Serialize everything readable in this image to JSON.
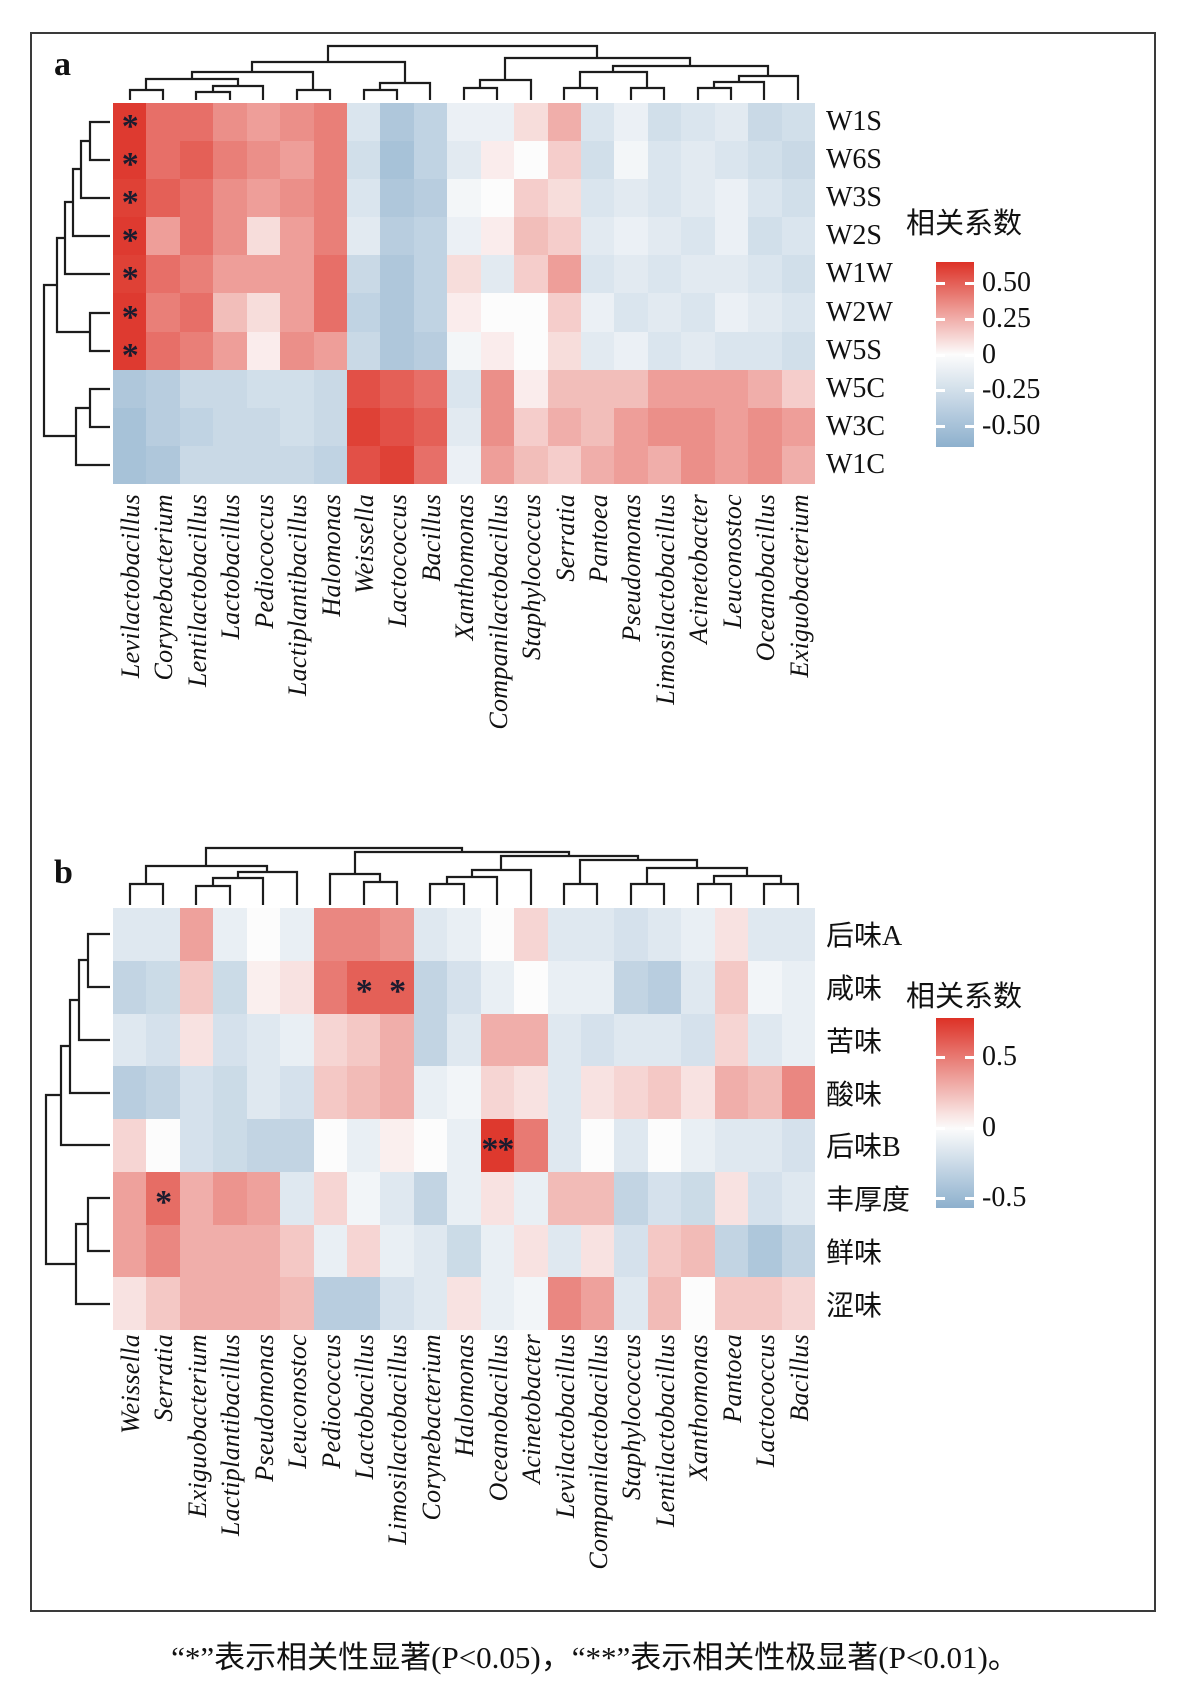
{
  "caption": "“*”表示相关性显著(P<0.05)，“**”表示相关性极显著(P<0.01)。",
  "chart_data": [
    {
      "type": "heatmap",
      "panel_label": "a",
      "legend": {
        "title": "相关系数",
        "ticks": [
          {
            "label": "0.50",
            "value": 0.5
          },
          {
            "label": "0.25",
            "value": 0.25
          },
          {
            "label": "0",
            "value": 0
          },
          {
            "label": "-0.25",
            "value": -0.25
          },
          {
            "label": "-0.50",
            "value": -0.5
          }
        ],
        "scale_max": 0.65,
        "scale_min": -0.65
      },
      "rows": [
        "W1S",
        "W6S",
        "W3S",
        "W2S",
        "W1W",
        "W2W",
        "W5S",
        "W5C",
        "W3C",
        "W1C"
      ],
      "columns": [
        "Levilactobacillus",
        "Corynebacterium",
        "Lentilactobacillus",
        "Lactobacillus",
        "Pediococcus",
        "Lactiplantibacillus",
        "Halomonas",
        "Weissella",
        "Lactococcus",
        "Bacillus",
        "Xanthomonas",
        "Companilactobacillus",
        "Staphylococcus",
        "Serratia",
        "Pantoea",
        "Pseudomonas",
        "Limosilactobacillus",
        "Acinetobacter",
        "Leuconostoc",
        "Oceanobacillus",
        "Exiguobacterium"
      ],
      "values": [
        [
          0.62,
          0.45,
          0.45,
          0.35,
          0.3,
          0.35,
          0.4,
          -0.2,
          -0.45,
          -0.35,
          -0.1,
          -0.1,
          0.1,
          0.25,
          -0.2,
          -0.1,
          -0.25,
          -0.2,
          -0.15,
          -0.3,
          -0.25
        ],
        [
          0.62,
          0.45,
          0.5,
          0.4,
          0.35,
          0.3,
          0.4,
          -0.25,
          -0.5,
          -0.35,
          -0.15,
          0.05,
          0.0,
          0.15,
          -0.25,
          -0.05,
          -0.2,
          -0.15,
          -0.2,
          -0.25,
          -0.3
        ],
        [
          0.6,
          0.5,
          0.45,
          0.35,
          0.3,
          0.35,
          0.4,
          -0.2,
          -0.45,
          -0.4,
          -0.05,
          0.0,
          0.15,
          0.1,
          -0.2,
          -0.15,
          -0.2,
          -0.15,
          -0.1,
          -0.2,
          -0.25
        ],
        [
          0.62,
          0.3,
          0.45,
          0.35,
          0.1,
          0.3,
          0.4,
          -0.15,
          -0.4,
          -0.35,
          -0.1,
          0.05,
          0.2,
          0.15,
          -0.15,
          -0.1,
          -0.15,
          -0.2,
          -0.1,
          -0.25,
          -0.2
        ],
        [
          0.6,
          0.45,
          0.4,
          0.3,
          0.3,
          0.3,
          0.45,
          -0.3,
          -0.45,
          -0.35,
          0.1,
          -0.15,
          0.15,
          0.3,
          -0.2,
          -0.15,
          -0.2,
          -0.15,
          -0.15,
          -0.2,
          -0.25
        ],
        [
          0.62,
          0.4,
          0.45,
          0.2,
          0.1,
          0.3,
          0.45,
          -0.35,
          -0.45,
          -0.35,
          0.05,
          0.0,
          0.0,
          0.15,
          -0.1,
          -0.2,
          -0.15,
          -0.2,
          -0.1,
          -0.15,
          -0.2
        ],
        [
          0.62,
          0.45,
          0.4,
          0.3,
          0.05,
          0.35,
          0.3,
          -0.3,
          -0.45,
          -0.4,
          -0.05,
          0.05,
          0.0,
          0.1,
          -0.15,
          -0.1,
          -0.2,
          -0.15,
          -0.2,
          -0.2,
          -0.25
        ],
        [
          -0.45,
          -0.4,
          -0.3,
          -0.3,
          -0.25,
          -0.25,
          -0.3,
          0.55,
          0.5,
          0.45,
          -0.2,
          0.35,
          0.05,
          0.2,
          0.2,
          0.2,
          0.3,
          0.3,
          0.3,
          0.25,
          0.15
        ],
        [
          -0.5,
          -0.4,
          -0.35,
          -0.3,
          -0.3,
          -0.25,
          -0.3,
          0.6,
          0.55,
          0.5,
          -0.15,
          0.35,
          0.15,
          0.25,
          0.2,
          0.3,
          0.35,
          0.35,
          0.3,
          0.35,
          0.3
        ],
        [
          -0.5,
          -0.45,
          -0.3,
          -0.3,
          -0.3,
          -0.3,
          -0.35,
          0.55,
          0.6,
          0.45,
          -0.1,
          0.3,
          0.2,
          0.15,
          0.25,
          0.3,
          0.25,
          0.35,
          0.3,
          0.35,
          0.25
        ]
      ],
      "significance": [
        {
          "row": "W1S",
          "col": "Levilactobacillus",
          "mark": "*"
        },
        {
          "row": "W6S",
          "col": "Levilactobacillus",
          "mark": "*"
        },
        {
          "row": "W3S",
          "col": "Levilactobacillus",
          "mark": "*"
        },
        {
          "row": "W2S",
          "col": "Levilactobacillus",
          "mark": "*"
        },
        {
          "row": "W1W",
          "col": "Levilactobacillus",
          "mark": "*"
        },
        {
          "row": "W2W",
          "col": "Levilactobacillus",
          "mark": "*"
        },
        {
          "row": "W5S",
          "col": "Levilactobacillus",
          "mark": "*"
        }
      ]
    },
    {
      "type": "heatmap",
      "panel_label": "b",
      "legend": {
        "title": "相关系数",
        "ticks": [
          {
            "label": "0.5",
            "value": 0.5
          },
          {
            "label": "0",
            "value": 0
          },
          {
            "label": "-0.5",
            "value": -0.5
          }
        ],
        "scale_max": 0.78,
        "scale_min": -0.57
      },
      "rows": [
        "后味A",
        "咸味",
        "苦味",
        "酸味",
        "后味B",
        "丰厚度",
        "鲜味",
        "涩味"
      ],
      "columns": [
        "Weissella",
        "Serratia",
        "Exiguobacterium",
        "Lactiplantibacillus",
        "Pseudomonas",
        "Leuconostoc",
        "Pediococcus",
        "Lactobacillus",
        "Limosilactobacillus",
        "Corynebacterium",
        "Halomonas",
        "Oceanobacillus",
        "Acinetobacter",
        "Levilactobacillus",
        "Companilactobacillus",
        "Staphylococcus",
        "Lentilactobacillus",
        "Xanthomonas",
        "Pantoea",
        "Lactococcus",
        "Bacillus"
      ],
      "values": [
        [
          -0.15,
          -0.15,
          0.35,
          -0.1,
          0.0,
          -0.1,
          0.45,
          0.45,
          0.4,
          -0.15,
          -0.1,
          0.0,
          0.15,
          -0.15,
          -0.15,
          -0.2,
          -0.15,
          -0.1,
          0.1,
          -0.15,
          -0.15
        ],
        [
          -0.3,
          -0.25,
          0.2,
          -0.25,
          0.05,
          0.1,
          0.5,
          0.6,
          0.6,
          -0.3,
          -0.2,
          -0.1,
          0.0,
          -0.1,
          -0.1,
          -0.3,
          -0.35,
          -0.15,
          0.2,
          -0.05,
          -0.1
        ],
        [
          -0.15,
          -0.2,
          0.1,
          -0.2,
          -0.15,
          -0.1,
          0.15,
          0.2,
          0.3,
          -0.3,
          -0.15,
          0.3,
          0.3,
          -0.15,
          -0.2,
          -0.15,
          -0.15,
          -0.2,
          0.15,
          -0.15,
          -0.1
        ],
        [
          -0.35,
          -0.3,
          -0.2,
          -0.25,
          -0.15,
          -0.2,
          0.2,
          0.25,
          0.3,
          -0.1,
          -0.05,
          0.15,
          0.1,
          -0.15,
          0.1,
          0.15,
          0.2,
          0.1,
          0.3,
          0.25,
          0.45
        ],
        [
          0.15,
          0.0,
          -0.2,
          -0.25,
          -0.3,
          -0.3,
          0.0,
          -0.1,
          0.05,
          0.0,
          -0.1,
          0.75,
          0.5,
          -0.15,
          0.0,
          -0.15,
          0.0,
          -0.1,
          -0.15,
          -0.15,
          -0.2
        ],
        [
          0.35,
          0.55,
          0.3,
          0.4,
          0.35,
          -0.15,
          0.15,
          -0.05,
          -0.15,
          -0.3,
          -0.1,
          0.1,
          -0.1,
          0.25,
          0.25,
          -0.3,
          -0.2,
          -0.25,
          0.1,
          -0.2,
          -0.15
        ],
        [
          0.35,
          0.45,
          0.3,
          0.3,
          0.3,
          0.2,
          -0.1,
          0.15,
          -0.1,
          -0.15,
          -0.25,
          -0.1,
          0.1,
          -0.15,
          0.1,
          -0.2,
          0.2,
          0.25,
          -0.3,
          -0.4,
          -0.3
        ],
        [
          0.1,
          0.2,
          0.3,
          0.3,
          0.3,
          0.25,
          -0.35,
          -0.35,
          -0.2,
          -0.15,
          0.1,
          -0.1,
          -0.05,
          0.45,
          0.35,
          -0.15,
          0.25,
          0.0,
          0.2,
          0.2,
          0.15
        ]
      ],
      "significance": [
        {
          "row": "咸味",
          "col": "Lactobacillus",
          "mark": "*"
        },
        {
          "row": "咸味",
          "col": "Limosilactobacillus",
          "mark": "*"
        },
        {
          "row": "后味B",
          "col": "Oceanobacillus",
          "mark": "**"
        },
        {
          "row": "丰厚度",
          "col": "Serratia",
          "mark": "*"
        }
      ]
    }
  ],
  "colors": {
    "positive_max": "#dd3126",
    "negative_max": "#8db0cd",
    "zero": "#fcfcfc",
    "dendrogram": "#1c1c1c"
  }
}
